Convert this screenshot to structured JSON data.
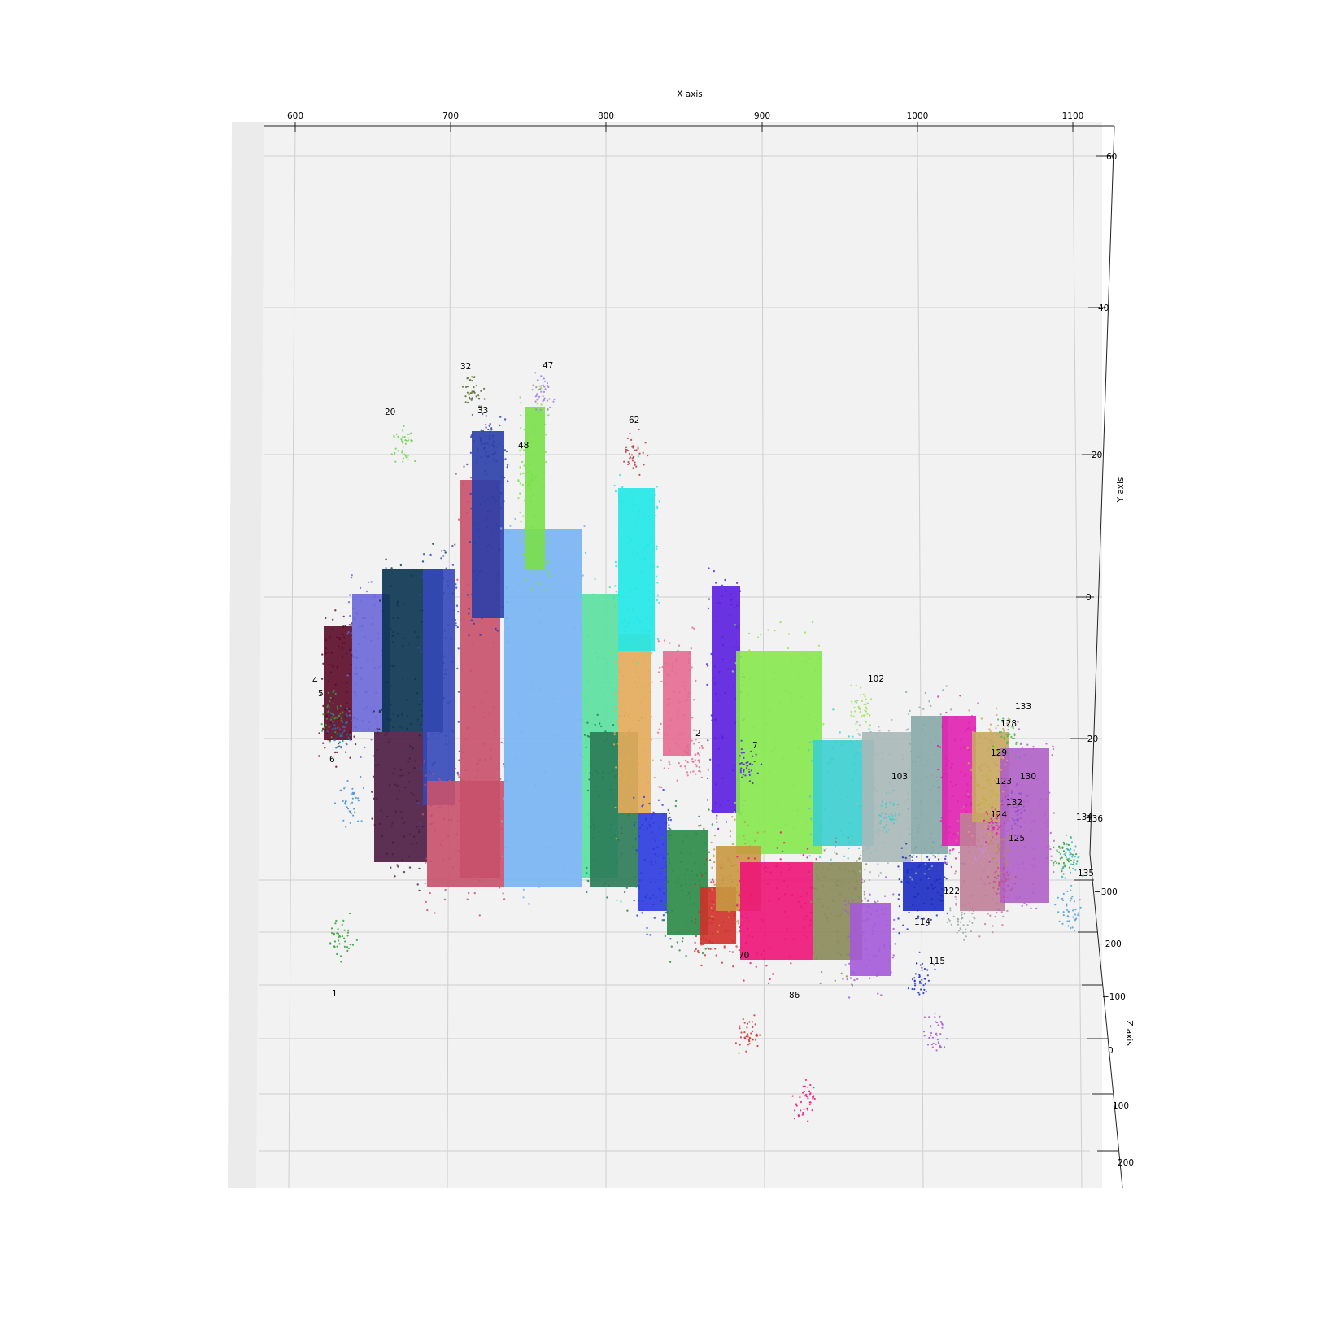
{
  "chart_data": {
    "type": "scatter",
    "projection": "3d",
    "xlabel": "X axis",
    "ylabel": "Y axis",
    "zlabel": "Z axis",
    "xlim": [
      580,
      1120
    ],
    "ylim": [
      -45,
      60
    ],
    "zlim": [
      -330,
      230
    ],
    "x_ticks": [
      "600",
      "700",
      "800",
      "900",
      "1000",
      "1100"
    ],
    "y_ticks": [
      "60",
      "40",
      "20",
      "0",
      "−20"
    ],
    "z_ticks": [
      "−300",
      "−200",
      "−100",
      "0",
      "100",
      "200"
    ],
    "grid": true,
    "clusters": [
      {
        "name": "1",
        "x": 630,
        "y": -22,
        "z": 80,
        "color": "#2ca02c"
      },
      {
        "name": "4",
        "x": 612,
        "y": -12,
        "z": -220,
        "color": "#3a9d3a"
      },
      {
        "name": "5",
        "x": 618,
        "y": -14,
        "z": -215,
        "color": "#1f77b4"
      },
      {
        "name": "6",
        "x": 625,
        "y": -23,
        "z": -200,
        "color": "#4a90d9"
      },
      {
        "name": "20",
        "x": 660,
        "y": 25,
        "z": -230,
        "color": "#6fd24a"
      },
      {
        "name": "32",
        "x": 705,
        "y": 32,
        "z": -235,
        "color": "#556b2f"
      },
      {
        "name": "33",
        "x": 715,
        "y": 25,
        "z": -230,
        "color": "#2b3fa8"
      },
      {
        "name": "47",
        "x": 752,
        "y": 32,
        "z": -235,
        "color": "#9b7be8"
      },
      {
        "name": "48",
        "x": 743,
        "y": 20,
        "z": -230,
        "color": "#7ae04a"
      },
      {
        "name": "62",
        "x": 812,
        "y": 24,
        "z": -230,
        "color": "#b83c3c"
      },
      {
        "name": "2",
        "x": 855,
        "y": -19,
        "z": -230,
        "color": "#e46b92"
      },
      {
        "name": "7",
        "x": 888,
        "y": -20,
        "z": -230,
        "color": "#5b1ee0"
      },
      {
        "name": "70",
        "x": 888,
        "y": -50,
        "z": -120,
        "color": "#d0302a"
      },
      {
        "name": "86",
        "x": 925,
        "y": -55,
        "z": -60,
        "color": "#ee1478"
      },
      {
        "name": "102",
        "x": 965,
        "y": -12,
        "z": -230,
        "color": "#96e84c"
      },
      {
        "name": "103",
        "x": 982,
        "y": -27,
        "z": -230,
        "color": "#3ccfd0"
      },
      {
        "name": "114",
        "x": 1002,
        "y": -45,
        "z": -160,
        "color": "#1a2bc2"
      },
      {
        "name": "115",
        "x": 1012,
        "y": -50,
        "z": -120,
        "color": "#a45ad8"
      },
      {
        "name": "122",
        "x": 1030,
        "y": -40,
        "z": -200,
        "color": "#98a8a8"
      },
      {
        "name": "123",
        "x": 1053,
        "y": -28,
        "z": -230,
        "color": "#e020b0"
      },
      {
        "name": "124",
        "x": 1045,
        "y": -33,
        "z": -230,
        "color": "#c88cc8"
      },
      {
        "name": "125",
        "x": 1058,
        "y": -36,
        "z": -225,
        "color": "#c05080"
      },
      {
        "name": "128",
        "x": 1055,
        "y": -18,
        "z": -230,
        "color": "#d4a870"
      },
      {
        "name": "129",
        "x": 1050,
        "y": -24,
        "z": -230,
        "color": "#c8b040"
      },
      {
        "name": "130",
        "x": 1068,
        "y": -26,
        "z": -230,
        "color": "#9050d0"
      },
      {
        "name": "132",
        "x": 1058,
        "y": -32,
        "z": -230,
        "color": "#b09040"
      },
      {
        "name": "133",
        "x": 1063,
        "y": -16,
        "z": -230,
        "color": "#4ab84a"
      },
      {
        "name": "134",
        "x": 1100,
        "y": -33,
        "z": -230,
        "color": "#2ca02c"
      },
      {
        "name": "135",
        "x": 1102,
        "y": -40,
        "z": -220,
        "color": "#4aa0d8"
      },
      {
        "name": "136",
        "x": 1105,
        "y": -33,
        "z": -228,
        "color": "#40c0c0"
      }
    ]
  }
}
